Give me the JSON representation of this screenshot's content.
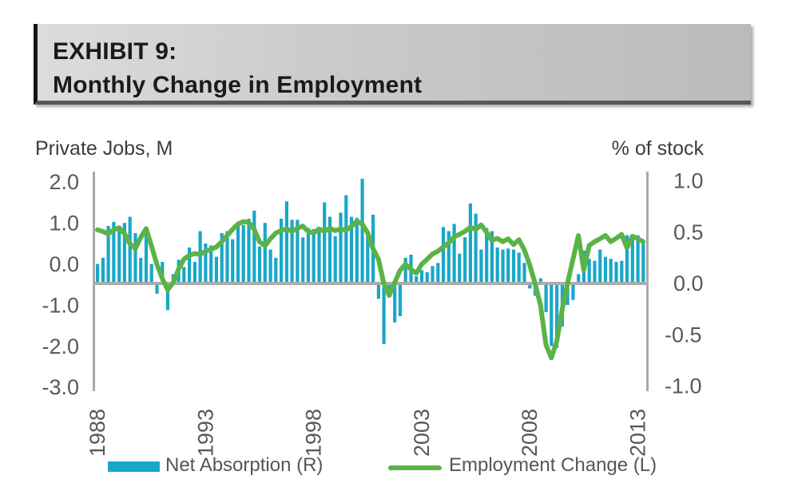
{
  "header": {
    "exhibit_label": "EXHIBIT 9:",
    "title": "Monthly Change in Employment"
  },
  "legend": {
    "bar_label": "Net Absorption (R)",
    "line_label": "Employment Change (L)"
  },
  "colors": {
    "bar_blue": "#19a7c8",
    "line_green": "#5bb347",
    "axis_gray": "#a9a9a9",
    "tick_text_gray": "#595959"
  },
  "chart_data": {
    "type": "bar",
    "subtype": "combo bar + line, dual axis",
    "title": "Monthly Change in Employment",
    "x_interval": "quarter",
    "x_period_start": "1988Q1",
    "x_period_end": "2013Q2",
    "x_ticks": [
      "1988",
      "1993",
      "1998",
      "2003",
      "2008",
      "2013"
    ],
    "x_tick_every_n_points": 20,
    "grid": false,
    "legend_position": "bottom",
    "left_axis": {
      "title": "Private Jobs, M",
      "tick_labels": [
        "2.0",
        "1.0",
        "0.0",
        "-1.0",
        "-2.0",
        "-3.0"
      ],
      "range": [
        -3.0,
        2.0
      ]
    },
    "right_axis": {
      "title": "% of stock",
      "tick_labels": [
        "1.0",
        "0.5",
        "0.0",
        "-0.5",
        "-1.0"
      ],
      "range": [
        -1.0,
        1.0
      ]
    },
    "series": [
      {
        "name": "Net Absorption (R)",
        "type": "bar",
        "axis": "right",
        "color": "#19a7c8",
        "values": [
          0.19,
          0.25,
          0.56,
          0.6,
          0.55,
          0.59,
          0.65,
          0.49,
          0.25,
          0.52,
          0.19,
          -0.1,
          0.21,
          -0.26,
          0.09,
          0.23,
          0.16,
          0.35,
          0.21,
          0.51,
          0.39,
          0.37,
          0.26,
          0.49,
          0.51,
          0.43,
          0.59,
          0.57,
          0.63,
          0.71,
          0.36,
          0.59,
          0.33,
          0.25,
          0.63,
          0.8,
          0.62,
          0.62,
          0.45,
          0.54,
          0.53,
          0.54,
          0.79,
          0.65,
          0.46,
          0.69,
          0.86,
          0.65,
          0.64,
          1.02,
          0.5,
          0.67,
          -0.15,
          -0.59,
          -0.09,
          -0.38,
          -0.32,
          0.25,
          0.28,
          0.07,
          0.13,
          0.11,
          0.17,
          0.2,
          0.55,
          0.51,
          0.58,
          0.29,
          0.45,
          0.78,
          0.68,
          0.33,
          0.54,
          0.51,
          0.35,
          0.33,
          0.34,
          0.33,
          0.3,
          0.2,
          -0.05,
          -0.12,
          0.05,
          -0.28,
          -0.61,
          -0.63,
          -0.42,
          -0.21,
          -0.16,
          0.09,
          0.32,
          0.24,
          0.22,
          0.33,
          0.26,
          0.24,
          0.21,
          0.22,
          0.47,
          0.47,
          0.47,
          0.4
        ]
      },
      {
        "name": "Employment Change (L)",
        "type": "line",
        "axis": "left",
        "color": "#5bb347",
        "values": [
          0.84,
          0.8,
          0.74,
          0.84,
          0.89,
          0.75,
          0.5,
          0.38,
          0.65,
          0.87,
          0.45,
          0.0,
          -0.35,
          -0.62,
          -0.45,
          -0.12,
          0.12,
          0.22,
          0.26,
          0.24,
          0.32,
          0.36,
          0.42,
          0.55,
          0.7,
          0.85,
          0.98,
          1.04,
          1.02,
          0.85,
          0.55,
          0.45,
          0.62,
          0.76,
          0.82,
          0.86,
          0.8,
          0.88,
          0.93,
          0.8,
          0.76,
          0.86,
          0.8,
          0.88,
          0.82,
          0.86,
          0.83,
          0.92,
          1.05,
          0.98,
          0.77,
          0.38,
          0.12,
          -0.47,
          -0.76,
          -0.45,
          -0.15,
          0.0,
          -0.12,
          -0.22,
          0.0,
          0.12,
          0.25,
          0.32,
          0.42,
          0.52,
          0.67,
          0.73,
          0.8,
          0.9,
          0.85,
          0.96,
          0.78,
          0.58,
          0.63,
          0.55,
          0.62,
          0.48,
          0.6,
          0.35,
          -0.02,
          -0.47,
          -1.0,
          -1.96,
          -2.28,
          -1.88,
          -1.1,
          -0.46,
          0.12,
          0.7,
          -0.14,
          0.46,
          0.55,
          0.62,
          0.7,
          0.55,
          0.63,
          0.73,
          0.4,
          0.68,
          0.62,
          0.55
        ]
      }
    ]
  }
}
